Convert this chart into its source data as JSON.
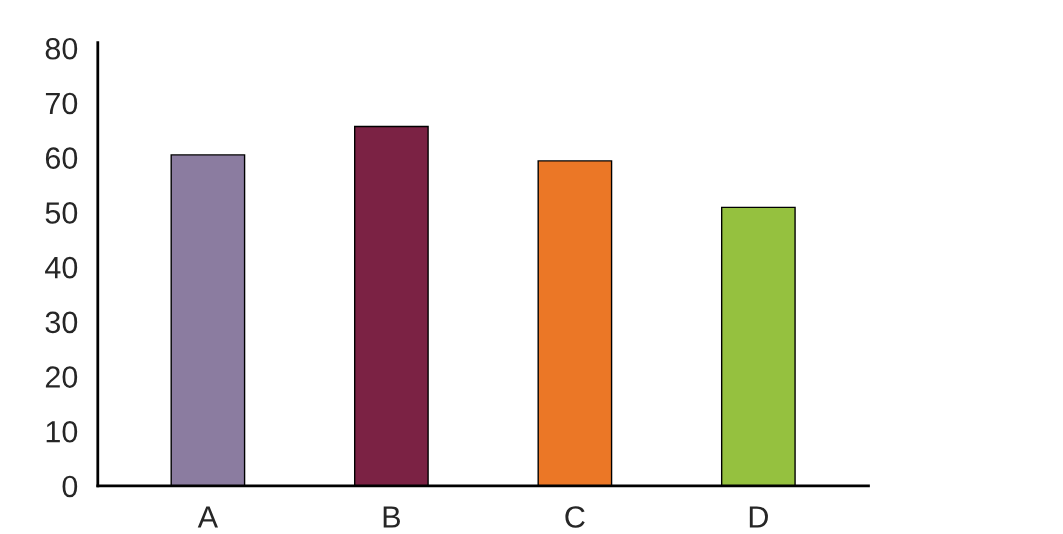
{
  "chart_data": {
    "type": "bar",
    "categories": [
      "A",
      "B",
      "C",
      "D"
    ],
    "values": [
      60.5,
      65.7,
      59.4,
      50.9
    ],
    "colors": [
      "#8b7ca0",
      "#7b2244",
      "#eb7726",
      "#95c13f"
    ],
    "ylim": [
      0,
      81
    ],
    "yticks": [
      0,
      10,
      20,
      30,
      40,
      50,
      60,
      70,
      80
    ],
    "grid": false
  }
}
